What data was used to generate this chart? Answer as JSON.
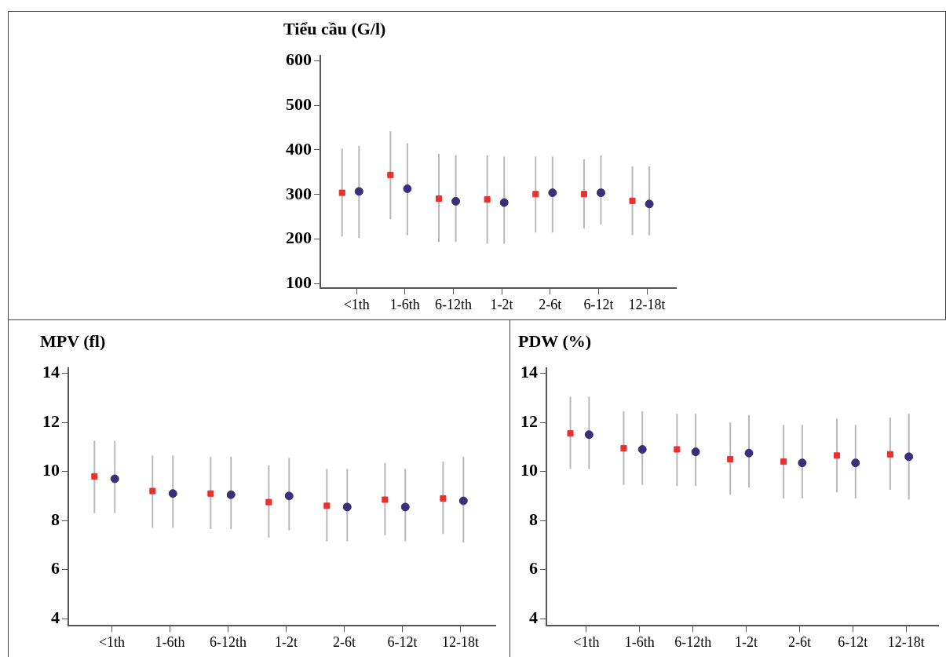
{
  "chart_data": [
    {
      "type": "scatter",
      "title": "Tiểu cầu (G/l)",
      "categories": [
        "<1th",
        "1-6th",
        "6-12th",
        "1-2t",
        "2-6t",
        "6-12t",
        "12-18t"
      ],
      "ylim": [
        90,
        610
      ],
      "yticks": [
        100,
        200,
        300,
        400,
        500,
        600
      ],
      "series": [
        {
          "color": "#e8312f",
          "marker": "square",
          "values": [
            304,
            344,
            291,
            289,
            301,
            301,
            286
          ],
          "errors": [
            [
              206,
              403
            ],
            [
              245,
              442
            ],
            [
              194,
              391
            ],
            [
              190,
              388
            ],
            [
              215,
              385
            ],
            [
              224,
              379
            ],
            [
              209,
              363
            ]
          ]
        },
        {
          "color": "#3b2f7a",
          "marker": "circle",
          "values": [
            307,
            313,
            285,
            282,
            304,
            304,
            279
          ],
          "errors": [
            [
              203,
              409
            ],
            [
              209,
              415
            ],
            [
              194,
              388
            ],
            [
              190,
              385
            ],
            [
              215,
              385
            ],
            [
              233,
              388
            ],
            [
              209,
              363
            ]
          ]
        }
      ]
    },
    {
      "type": "scatter",
      "title": "MPV (fl)",
      "categories": [
        "<1th",
        "1-6th",
        "6-12th",
        "1-2t",
        "2-6t",
        "6-12t",
        "12-18t"
      ],
      "ylim": [
        3.7,
        14.2
      ],
      "yticks": [
        4,
        6,
        8,
        10,
        12,
        14
      ],
      "series": [
        {
          "color": "#e8312f",
          "marker": "square",
          "values": [
            9.8,
            9.2,
            9.1,
            8.75,
            8.6,
            8.85,
            8.9
          ],
          "errors": [
            [
              8.3,
              11.25
            ],
            [
              7.7,
              10.65
            ],
            [
              7.65,
              10.6
            ],
            [
              7.3,
              10.25
            ],
            [
              7.15,
              10.1
            ],
            [
              7.4,
              10.35
            ],
            [
              7.45,
              10.4
            ]
          ]
        },
        {
          "color": "#3b2f7a",
          "marker": "circle",
          "values": [
            9.7,
            9.1,
            9.05,
            9.0,
            8.55,
            8.55,
            8.8
          ],
          "errors": [
            [
              8.3,
              11.25
            ],
            [
              7.7,
              10.65
            ],
            [
              7.65,
              10.6
            ],
            [
              7.6,
              10.55
            ],
            [
              7.15,
              10.1
            ],
            [
              7.15,
              10.1
            ],
            [
              7.1,
              10.6
            ]
          ]
        }
      ]
    },
    {
      "type": "scatter",
      "title": "PDW (%)",
      "categories": [
        "<1th",
        "1-6th",
        "6-12th",
        "1-2t",
        "2-6t",
        "6-12t",
        "12-18t"
      ],
      "ylim": [
        3.7,
        14.2
      ],
      "yticks": [
        4,
        6,
        8,
        10,
        12,
        14
      ],
      "series": [
        {
          "color": "#e8312f",
          "marker": "square",
          "values": [
            11.55,
            10.95,
            10.9,
            10.5,
            10.4,
            10.65,
            10.7
          ],
          "errors": [
            [
              10.1,
              13.05
            ],
            [
              9.45,
              12.45
            ],
            [
              9.4,
              12.35
            ],
            [
              9.05,
              12.0
            ],
            [
              8.9,
              11.9
            ],
            [
              9.15,
              12.15
            ],
            [
              9.25,
              12.2
            ]
          ]
        },
        {
          "color": "#3b2f7a",
          "marker": "circle",
          "values": [
            11.5,
            10.9,
            10.8,
            10.75,
            10.35,
            10.35,
            10.6
          ],
          "errors": [
            [
              10.1,
              13.05
            ],
            [
              9.45,
              12.45
            ],
            [
              9.4,
              12.35
            ],
            [
              9.35,
              12.3
            ],
            [
              8.9,
              11.9
            ],
            [
              8.9,
              11.9
            ],
            [
              8.85,
              12.35
            ]
          ]
        }
      ]
    }
  ]
}
